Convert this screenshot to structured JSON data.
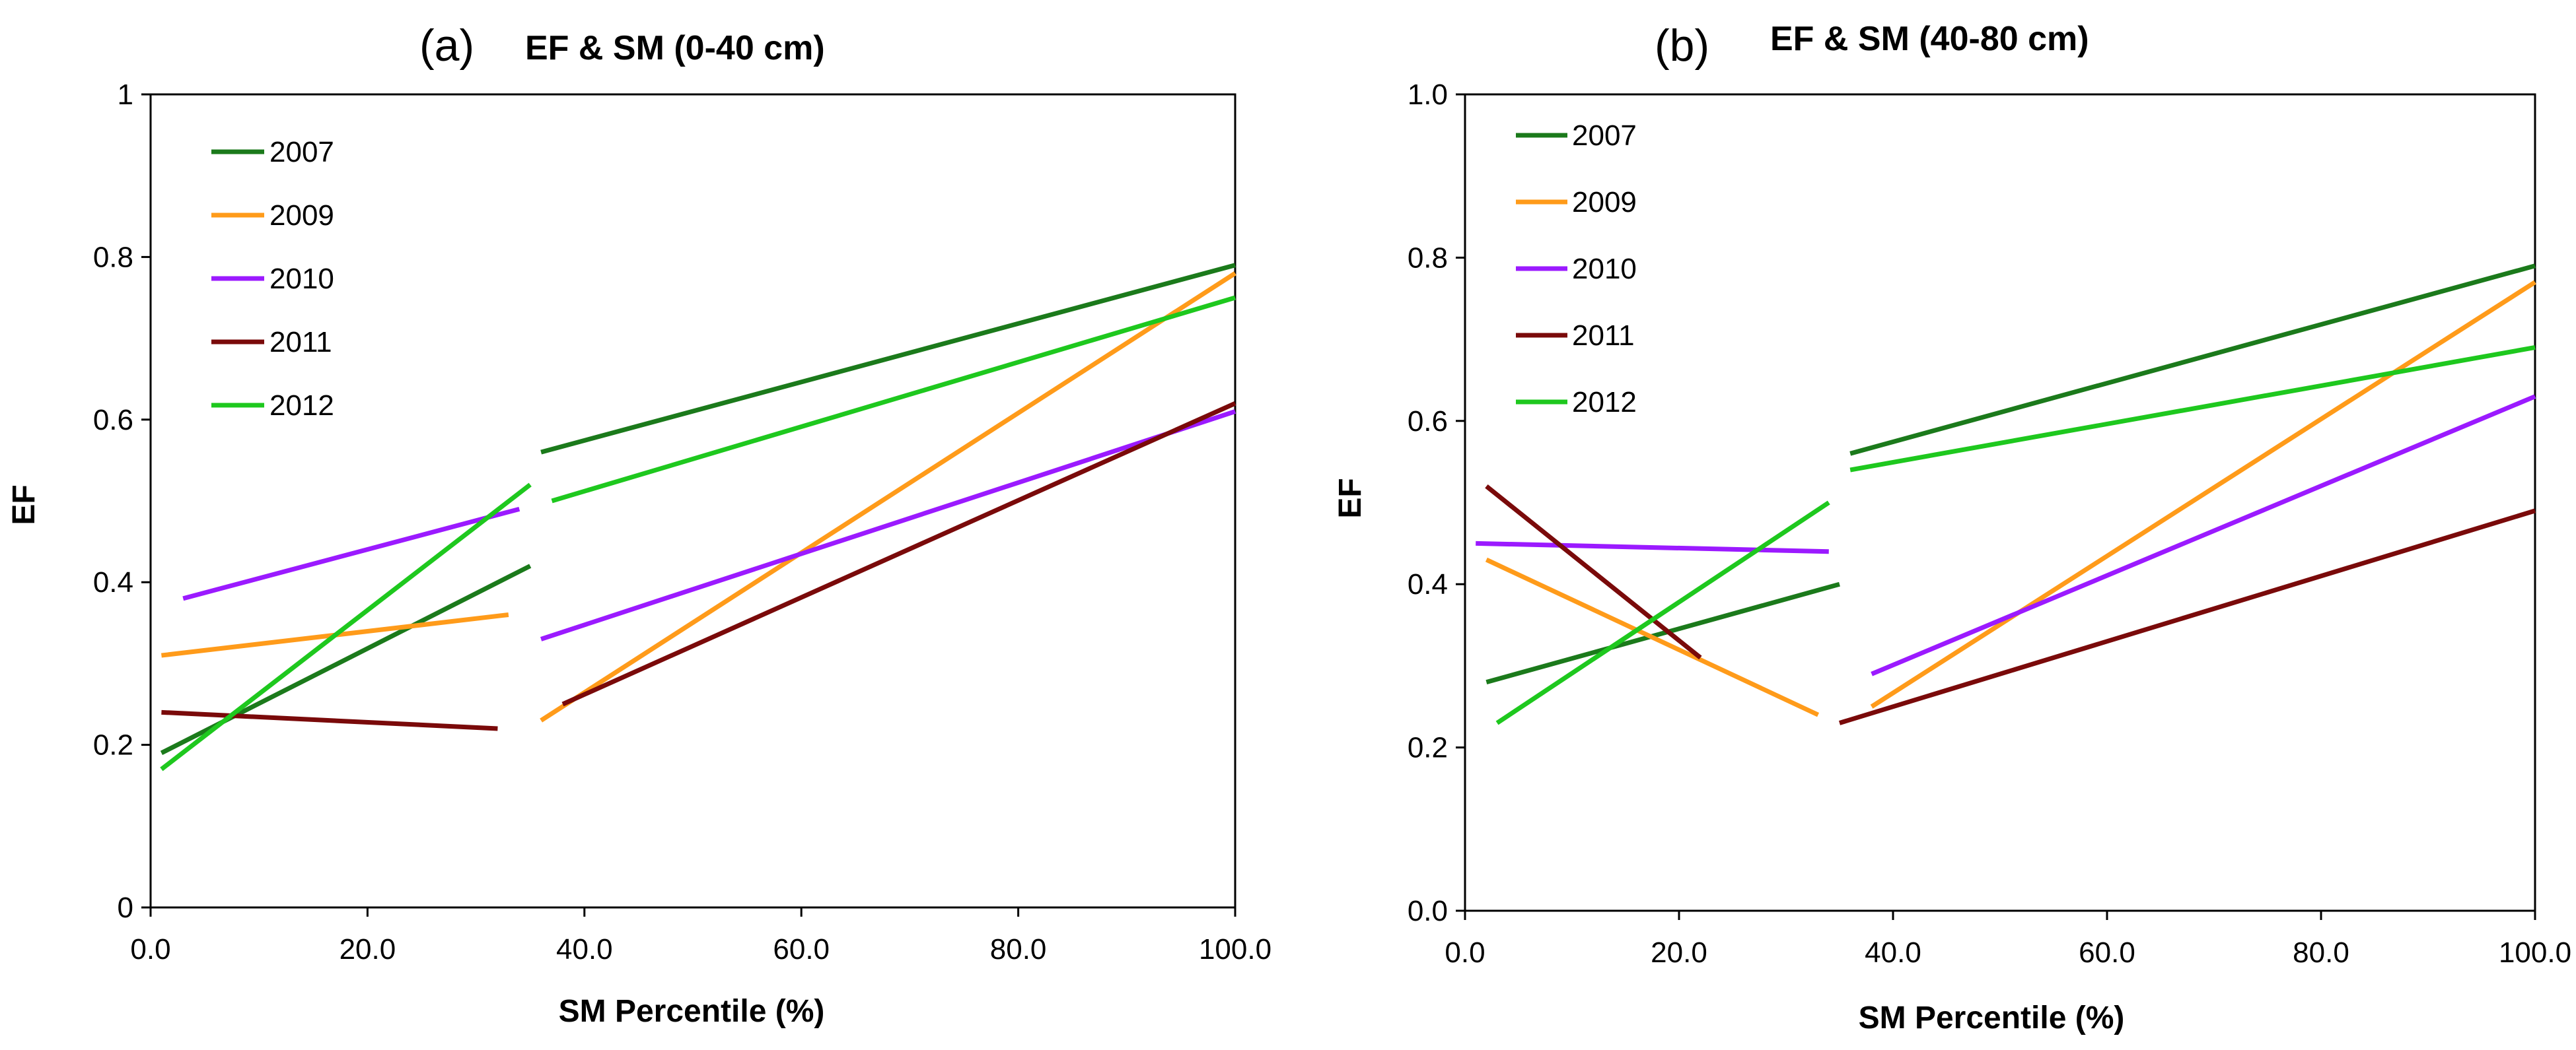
{
  "colors": {
    "2007": "#1b7a1b",
    "2009": "#ff9b1a",
    "2010": "#9b1aff",
    "2011": "#7a0a0a",
    "2012": "#1ec81e"
  },
  "chart_data": [
    {
      "type": "line",
      "panel_label": "(a)",
      "title": "EF & SM (0-40 cm)",
      "xlabel": "SM Percentile  (%)",
      "ylabel": "EF",
      "xlim": [
        0,
        100
      ],
      "ylim": [
        0,
        1
      ],
      "xticks": [
        0,
        20,
        40,
        60,
        80,
        100
      ],
      "xtick_labels": [
        "0.0",
        "20.0",
        "40.0",
        "60.0",
        "80.0",
        "100.0"
      ],
      "yticks": [
        0,
        0.2,
        0.4,
        0.6,
        0.8,
        1
      ],
      "ytick_labels": [
        "0",
        "0.2",
        "0.4",
        "0.6",
        "0.8",
        "1"
      ],
      "legend": [
        "2007",
        "2009",
        "2010",
        "2011",
        "2012"
      ],
      "legend_position": "top-left",
      "series": [
        {
          "name": "2007",
          "segments": [
            [
              [
                1,
                0.19
              ],
              [
                35,
                0.42
              ]
            ],
            [
              [
                36,
                0.56
              ],
              [
                100,
                0.79
              ]
            ]
          ]
        },
        {
          "name": "2009",
          "segments": [
            [
              [
                1,
                0.31
              ],
              [
                33,
                0.36
              ]
            ],
            [
              [
                36,
                0.23
              ],
              [
                100,
                0.78
              ]
            ]
          ]
        },
        {
          "name": "2010",
          "segments": [
            [
              [
                3,
                0.38
              ],
              [
                34,
                0.49
              ]
            ],
            [
              [
                36,
                0.33
              ],
              [
                100,
                0.61
              ]
            ]
          ]
        },
        {
          "name": "2011",
          "segments": [
            [
              [
                1,
                0.24
              ],
              [
                32,
                0.22
              ]
            ],
            [
              [
                38,
                0.25
              ],
              [
                100,
                0.62
              ]
            ]
          ]
        },
        {
          "name": "2012",
          "segments": [
            [
              [
                1,
                0.17
              ],
              [
                35,
                0.52
              ]
            ],
            [
              [
                37,
                0.5
              ],
              [
                100,
                0.75
              ]
            ]
          ]
        }
      ]
    },
    {
      "type": "line",
      "panel_label": "(b)",
      "title": "EF & SM (40-80 cm)",
      "xlabel": "SM Percentile  (%)",
      "ylabel": "EF",
      "xlim": [
        0,
        100
      ],
      "ylim": [
        0,
        1
      ],
      "xticks": [
        0,
        20,
        40,
        60,
        80,
        100
      ],
      "xtick_labels": [
        "0.0",
        "20.0",
        "40.0",
        "60.0",
        "80.0",
        "100.0"
      ],
      "yticks": [
        0,
        0.2,
        0.4,
        0.6,
        0.8,
        1
      ],
      "ytick_labels": [
        "0.0",
        "0.2",
        "0.4",
        "0.6",
        "0.8",
        "1.0"
      ],
      "legend": [
        "2007",
        "2009",
        "2010",
        "2011",
        "2012"
      ],
      "legend_position": "top-left",
      "series": [
        {
          "name": "2007",
          "segments": [
            [
              [
                2,
                0.28
              ],
              [
                35,
                0.4
              ]
            ],
            [
              [
                36,
                0.56
              ],
              [
                100,
                0.79
              ]
            ]
          ]
        },
        {
          "name": "2009",
          "segments": [
            [
              [
                2,
                0.43
              ],
              [
                33,
                0.24
              ]
            ],
            [
              [
                38,
                0.25
              ],
              [
                100,
                0.77
              ]
            ]
          ]
        },
        {
          "name": "2010",
          "segments": [
            [
              [
                1,
                0.45
              ],
              [
                34,
                0.44
              ]
            ],
            [
              [
                38,
                0.29
              ],
              [
                100,
                0.63
              ]
            ]
          ]
        },
        {
          "name": "2011",
          "segments": [
            [
              [
                2,
                0.52
              ],
              [
                22,
                0.31
              ]
            ],
            [
              [
                35,
                0.23
              ],
              [
                100,
                0.49
              ]
            ]
          ]
        },
        {
          "name": "2012",
          "segments": [
            [
              [
                3,
                0.23
              ],
              [
                34,
                0.5
              ]
            ],
            [
              [
                36,
                0.54
              ],
              [
                100,
                0.69
              ]
            ]
          ]
        }
      ]
    }
  ]
}
